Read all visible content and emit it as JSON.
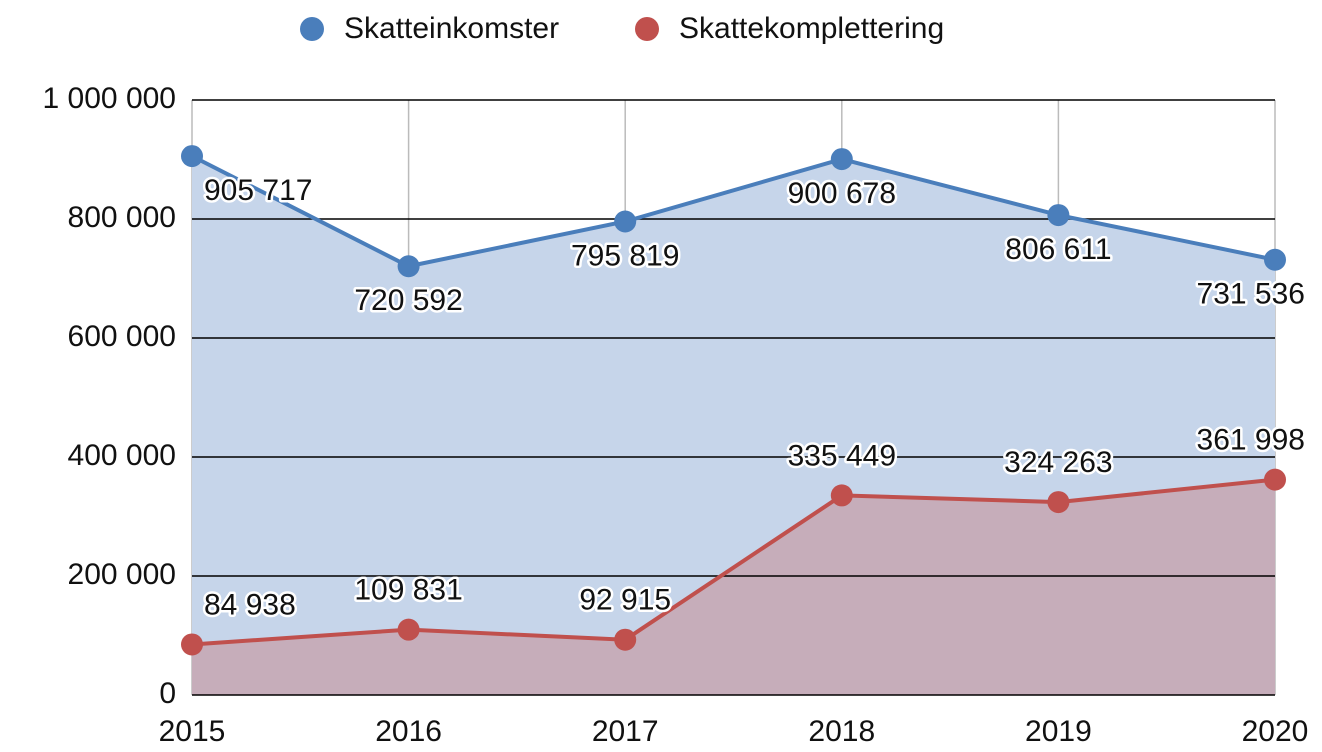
{
  "chart_data": {
    "type": "area",
    "categories": [
      "2015",
      "2016",
      "2017",
      "2018",
      "2019",
      "2020"
    ],
    "series": [
      {
        "name": "Skatteinkomster",
        "color": "#4a7ebb",
        "fill": "#c6d5ea",
        "values": [
          905717,
          720592,
          795819,
          900678,
          806611,
          731536
        ],
        "value_labels": [
          "905 717",
          "720 592",
          "795 819",
          "900 678",
          "806 611",
          "731 536"
        ]
      },
      {
        "name": "Skattekomplettering",
        "color": "#c0504d",
        "fill": "#c6adba",
        "values": [
          84938,
          109831,
          92915,
          335449,
          324263,
          361998
        ],
        "value_labels": [
          "84 938",
          "109 831",
          "92 915",
          "335 449",
          "324 263",
          "361 998"
        ]
      }
    ],
    "ylim": [
      0,
      1000000
    ],
    "yticks": [
      0,
      {
        "value": 200000,
        "label": "200 000"
      },
      {
        "value": 400000,
        "label": "400 000"
      },
      {
        "value": 600000,
        "label": "600 000"
      },
      {
        "value": 800000,
        "label": "800 000"
      },
      {
        "value": 1000000,
        "label": "1 000 000"
      }
    ],
    "grid": true,
    "legend": "top"
  }
}
